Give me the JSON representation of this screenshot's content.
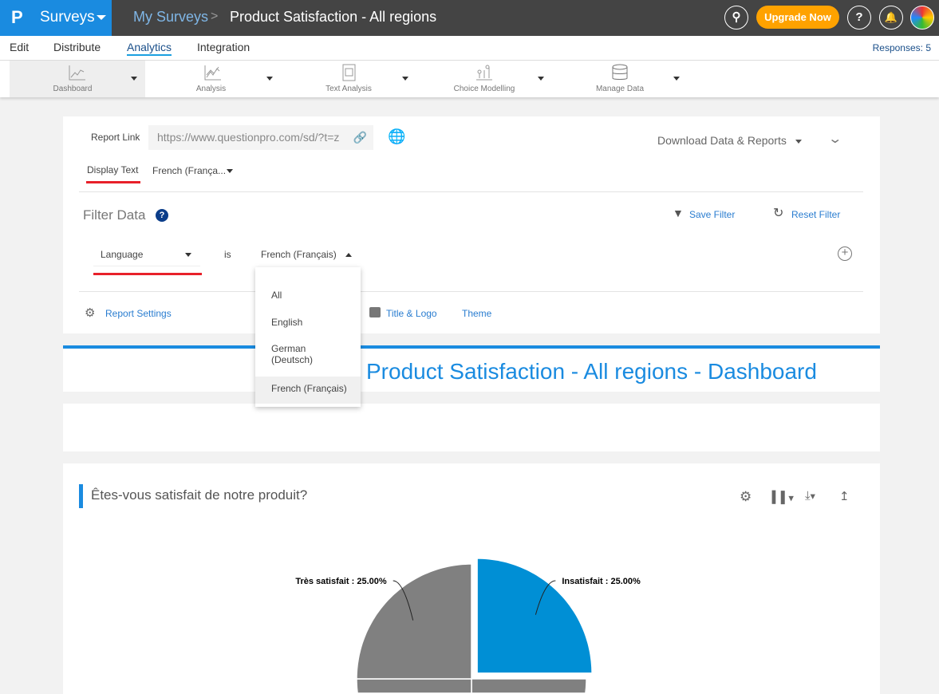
{
  "header": {
    "brand": "Surveys",
    "breadcrumb_parent": "My Surveys",
    "breadcrumb_sep": ">",
    "title": "Product Satisfaction - All regions",
    "upgrade": "Upgrade Now",
    "help": "?"
  },
  "nav": {
    "items": [
      "Edit",
      "Distribute",
      "Analytics",
      "Integration"
    ],
    "active": "Analytics",
    "responses": "Responses: 5"
  },
  "tools": [
    {
      "label": "Dashboard",
      "icon": "line-chart-icon"
    },
    {
      "label": "Analysis",
      "icon": "analysis-chart-icon"
    },
    {
      "label": "Text Analysis",
      "icon": "text-analysis-icon"
    },
    {
      "label": "Choice Modelling",
      "icon": "choice-modelling-icon"
    },
    {
      "label": "Manage Data",
      "icon": "database-icon"
    }
  ],
  "report": {
    "link_label": "Report Link",
    "link_value": "https://www.questionpro.com/sd/?t=z",
    "download": "Download Data & Reports",
    "display_text": "Display Text",
    "display_value": "French (França..."
  },
  "filter": {
    "title": "Filter Data",
    "save": "Save Filter",
    "reset": "Reset Filter",
    "field": "Language",
    "op": "is",
    "value": "French (Français)",
    "options": [
      "All",
      "English",
      "German (Deutsch)",
      "French (Français)"
    ],
    "selected": "French (Français)"
  },
  "settings": {
    "report_settings": "Report Settings",
    "title_logo": "Title & Logo",
    "theme": "Theme"
  },
  "dashboard_title": "Product Satisfaction - All regions - Dashboard",
  "question": {
    "title": "Êtes-vous satisfait de notre produit?"
  },
  "colors": {
    "brand": "#1a8be0",
    "upgrade": "#ffa200",
    "highlight": "#008fd5",
    "slice": "#808080",
    "red_underline": "#e8202a"
  },
  "chart_data": {
    "type": "pie",
    "slices": [
      {
        "label": "Insatisfait",
        "value": 25,
        "display": "Insatisfait : 25.00%",
        "color": "#008fd5"
      },
      {
        "label": "",
        "value": 25,
        "color": "#808080"
      },
      {
        "label": "",
        "value": 25,
        "color": "#808080"
      },
      {
        "label": "Très satisfait",
        "value": 25,
        "display": "Très satisfait : 25.00%",
        "color": "#808080"
      }
    ]
  }
}
